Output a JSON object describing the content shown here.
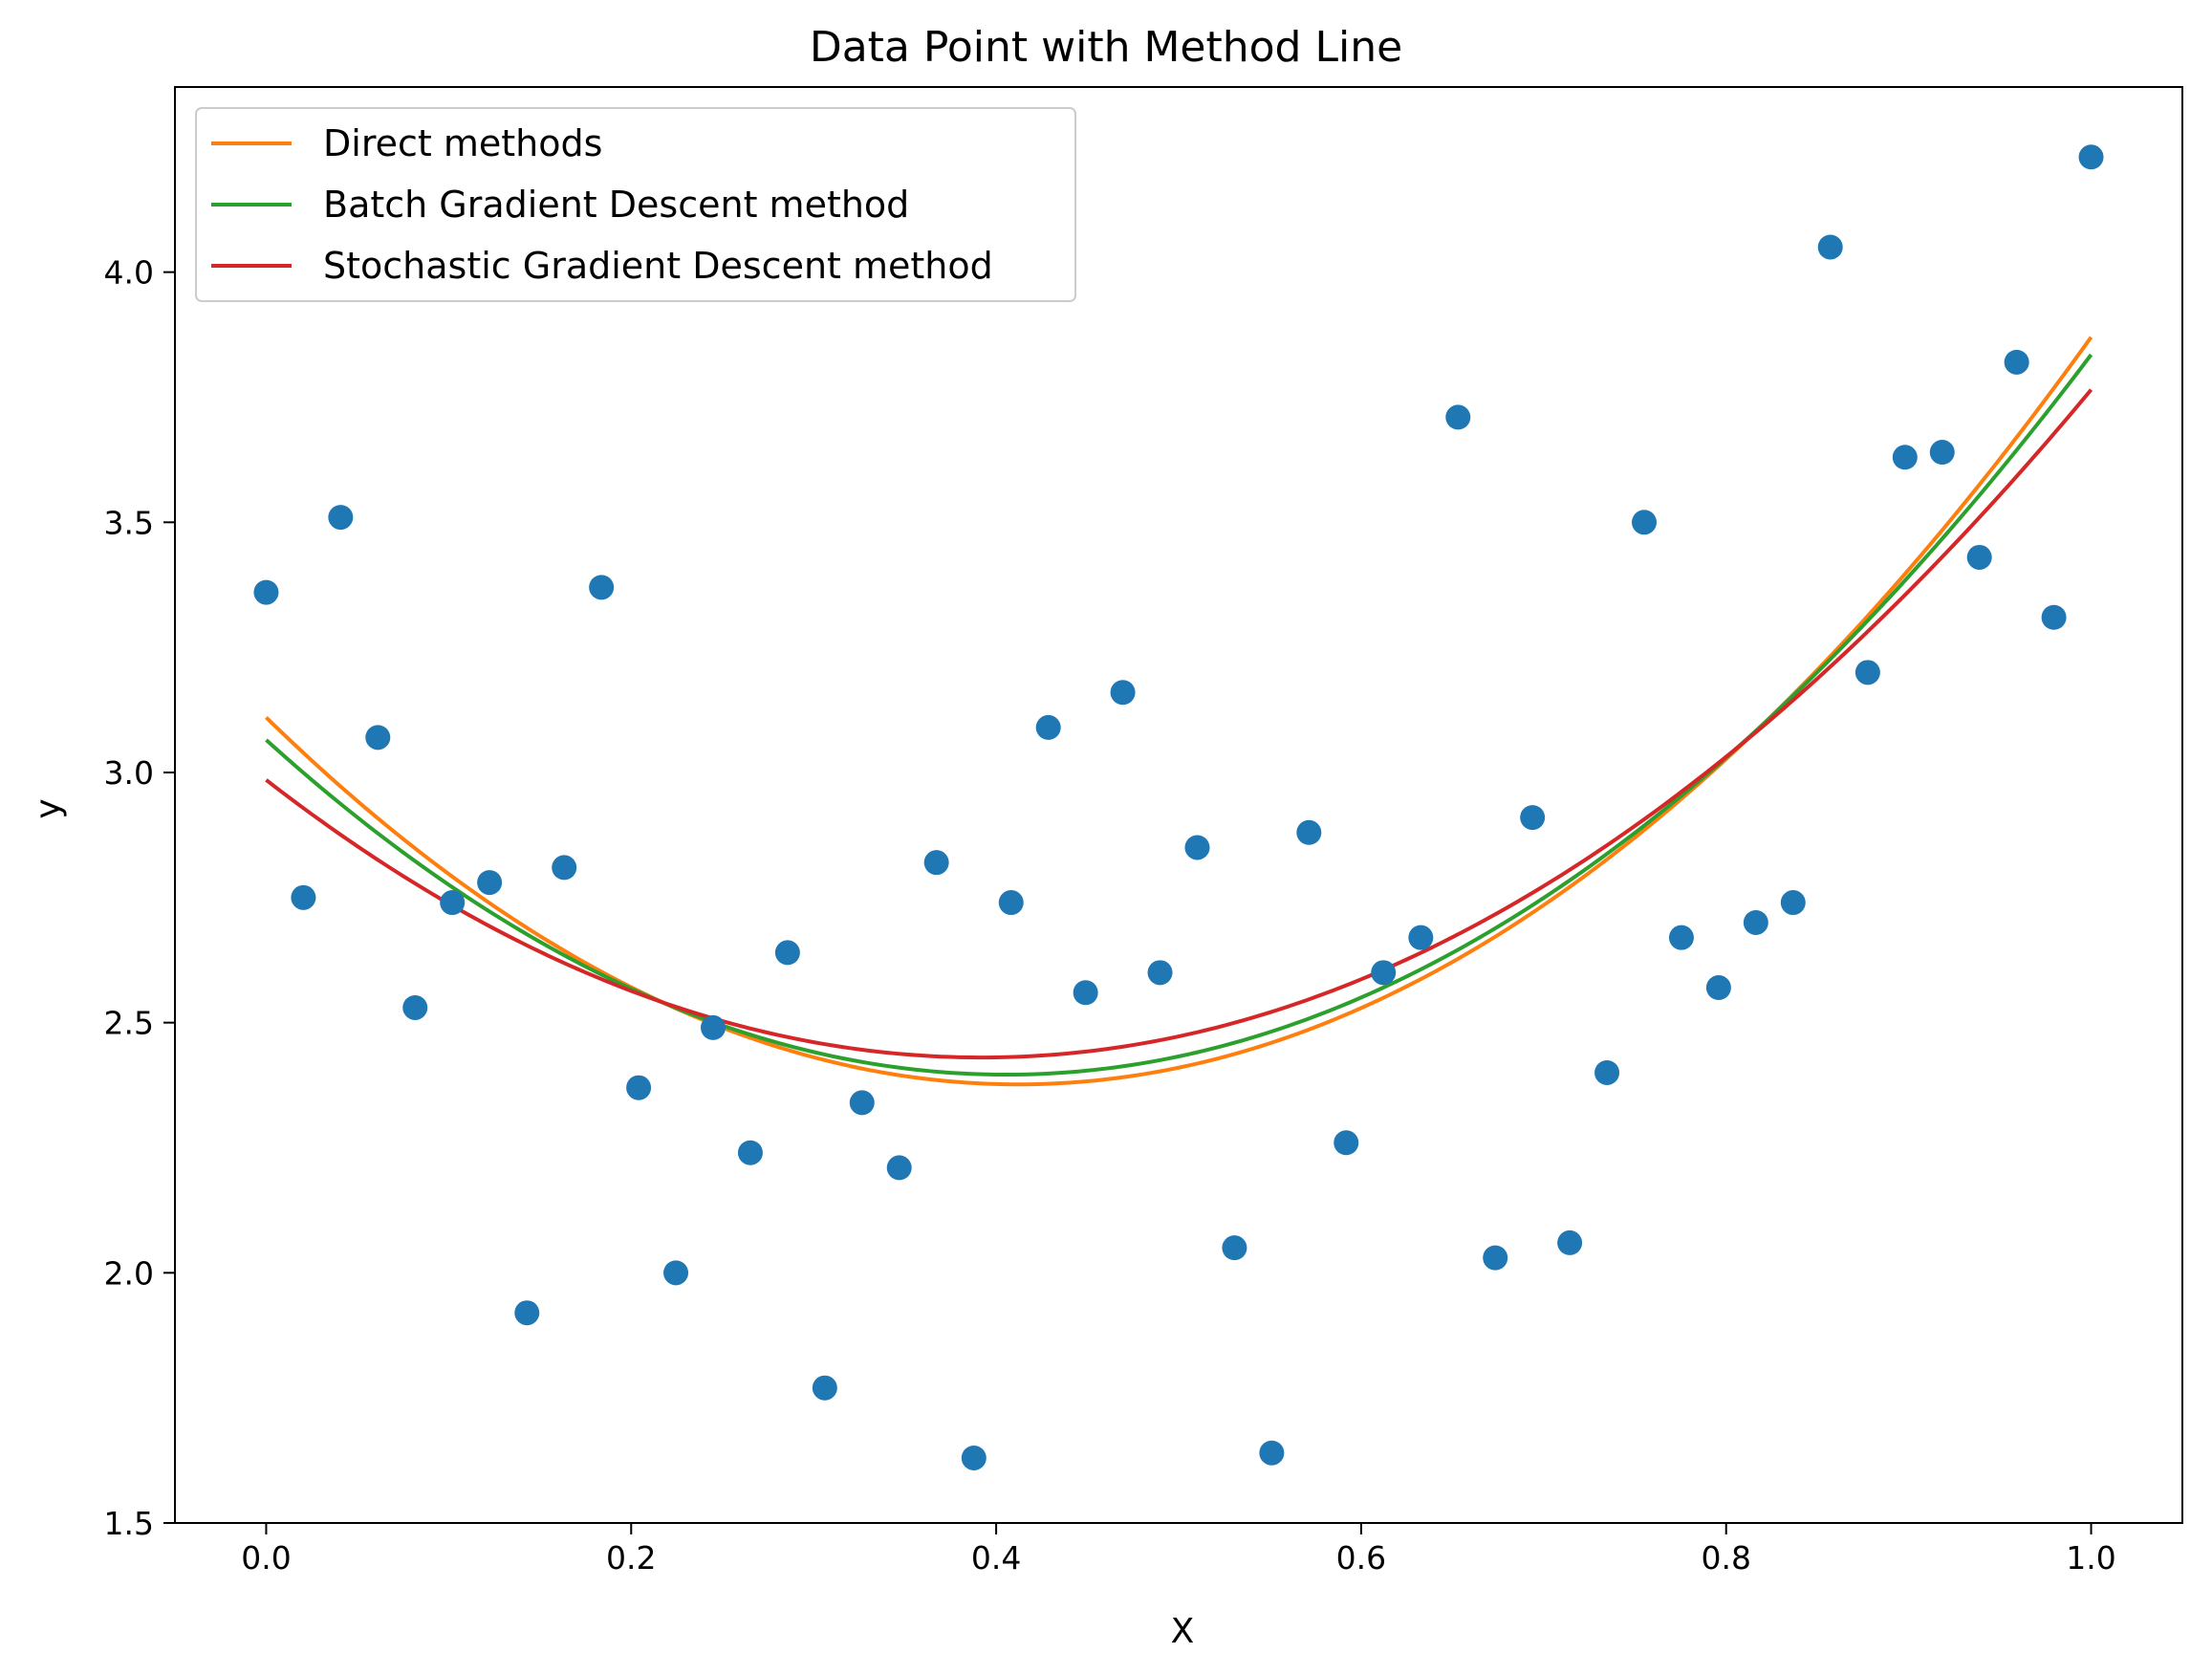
{
  "chart_data": {
    "type": "scatter",
    "title": "Data Point with Method Line",
    "xlabel": "X",
    "ylabel": "y",
    "xlim": [
      -0.05,
      1.05
    ],
    "ylim": [
      1.5,
      4.37
    ],
    "xticks": [
      "0.0",
      "0.2",
      "0.4",
      "0.6",
      "0.8",
      "1.0"
    ],
    "yticks": [
      "1.5",
      "2.0",
      "2.5",
      "3.0",
      "3.5",
      "4.0"
    ],
    "legend_position": "top-left",
    "grid": false,
    "points": {
      "color": "#1f77b4",
      "x": [
        0.0,
        0.0204,
        0.0408,
        0.0612,
        0.0816,
        0.102,
        0.1224,
        0.1429,
        0.1633,
        0.1837,
        0.2041,
        0.2245,
        0.2449,
        0.2653,
        0.2857,
        0.3061,
        0.3265,
        0.3469,
        0.3673,
        0.3878,
        0.4082,
        0.4286,
        0.449,
        0.4694,
        0.4898,
        0.5102,
        0.5306,
        0.551,
        0.5714,
        0.5918,
        0.6122,
        0.6327,
        0.6531,
        0.6735,
        0.6939,
        0.7143,
        0.7347,
        0.7551,
        0.7755,
        0.7959,
        0.8163,
        0.8367,
        0.8571,
        0.8776,
        0.898,
        0.9184,
        0.9388,
        0.9592,
        0.9796,
        1.0
      ],
      "y": [
        3.36,
        2.75,
        3.51,
        3.07,
        2.53,
        2.74,
        2.78,
        1.92,
        2.81,
        3.37,
        2.37,
        2.0,
        2.49,
        2.24,
        2.64,
        1.77,
        2.34,
        2.21,
        2.82,
        1.63,
        2.74,
        3.09,
        2.56,
        3.16,
        2.6,
        2.85,
        2.05,
        1.64,
        2.88,
        2.26,
        2.6,
        2.67,
        3.71,
        2.03,
        2.91,
        2.06,
        2.4,
        3.5,
        2.67,
        2.57,
        2.7,
        2.74,
        4.05,
        3.2,
        3.63,
        3.64,
        3.43,
        3.82,
        3.31,
        4.23
      ]
    },
    "series": [
      {
        "name": "Direct methods",
        "color": "#ff7f0e",
        "coefficients": [
          3.11,
          -3.56,
          4.32
        ]
      },
      {
        "name": "Batch Gradient Descent method",
        "color": "#2ca02c",
        "coefficients": [
          3.065,
          -3.3,
          4.07
        ]
      },
      {
        "name": "Stochastic Gradient Descent method",
        "color": "#d62728",
        "coefficients": [
          2.985,
          -2.83,
          3.61
        ]
      }
    ]
  }
}
